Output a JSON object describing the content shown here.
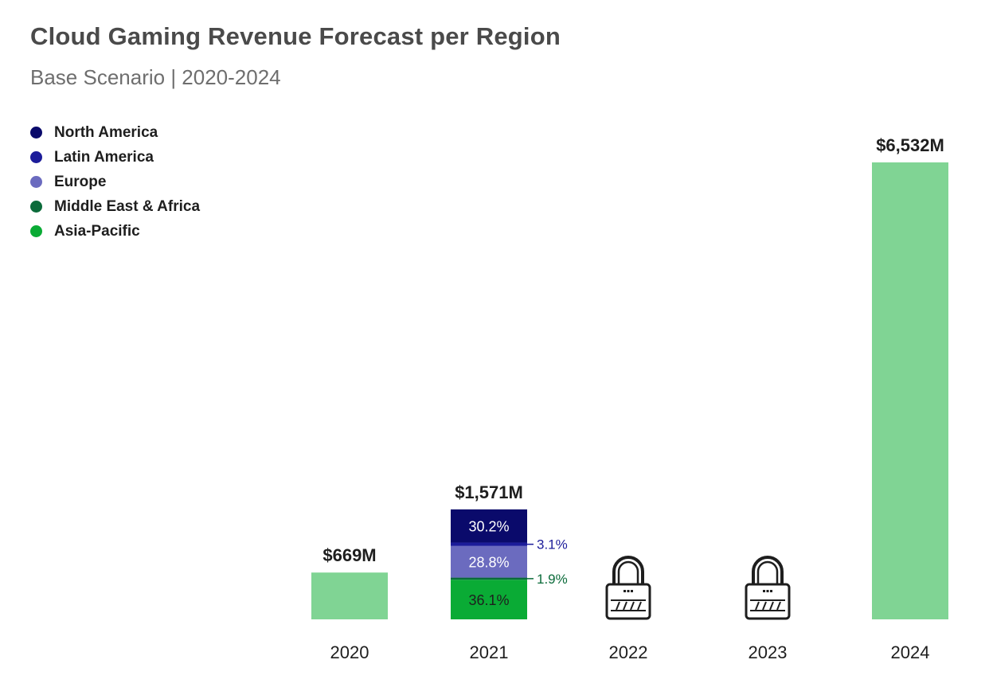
{
  "title": "Cloud Gaming Revenue Forecast per Region",
  "subtitle": "Base Scenario | 2020-2024",
  "colors": {
    "total_bar": "#80d494",
    "locked_icon": "#1e1e1e",
    "axis_label": "#1e1e1e",
    "bar_label": "#1e1e1e"
  },
  "legend": [
    {
      "label": "North America",
      "color": "#0a0a6b"
    },
    {
      "label": "Latin America",
      "color": "#1c1c9a"
    },
    {
      "label": "Europe",
      "color": "#6b6bbf"
    },
    {
      "label": "Middle East & Africa",
      "color": "#0b6b3a"
    },
    {
      "label": "Asia-Pacific",
      "color": "#0aab35"
    }
  ],
  "chart_data": {
    "type": "bar",
    "stacked": true,
    "title": "Cloud Gaming Revenue Forecast per Region",
    "subtitle": "Base Scenario | 2020-2024",
    "categories": [
      "2020",
      "2021",
      "2022",
      "2023",
      "2024"
    ],
    "unit": "$M",
    "totals": [
      669,
      1571,
      null,
      null,
      6532
    ],
    "total_labels": [
      "$669M",
      "$1,571M",
      "",
      "",
      "$6,532M"
    ],
    "locked": [
      false,
      false,
      true,
      true,
      false
    ],
    "lock_icon": "padlock-icon",
    "breakdown_2021": [
      {
        "name": "North America",
        "percent": 30.2,
        "label": "30.2%",
        "color": "#0a0a6b",
        "text_color": "#ffffff",
        "callout": false
      },
      {
        "name": "Latin America",
        "percent": 3.1,
        "label": "3.1%",
        "color": "#1c1c9a",
        "text_color": "#1c1c9a",
        "callout": true
      },
      {
        "name": "Europe",
        "percent": 28.8,
        "label": "28.8%",
        "color": "#6b6bbf",
        "text_color": "#ffffff",
        "callout": false
      },
      {
        "name": "Middle East & Africa",
        "percent": 1.9,
        "label": "1.9%",
        "color": "#0b6b3a",
        "text_color": "#0b6b3a",
        "callout": true
      },
      {
        "name": "Asia-Pacific",
        "percent": 36.1,
        "label": "36.1%",
        "color": "#0aab35",
        "text_color": "#1e1e1e",
        "callout": false
      }
    ],
    "legend_position": "top-left",
    "grid": false
  }
}
